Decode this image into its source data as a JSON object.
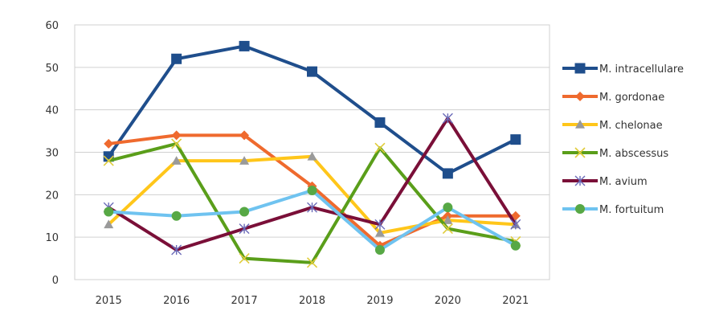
{
  "chart_data": {
    "type": "line",
    "title": "",
    "xlabel": "",
    "ylabel": "",
    "x": [
      "2015",
      "2016",
      "2017",
      "2018",
      "2019",
      "2020",
      "2021"
    ],
    "ylim": [
      0,
      60
    ],
    "yticks": [
      0,
      10,
      20,
      30,
      40,
      50,
      60
    ],
    "grid": true,
    "legend": "right",
    "series": [
      {
        "name": "M. intracellulare",
        "values": [
          29,
          52,
          55,
          49,
          37,
          25,
          33
        ],
        "color": "#1f4e8c",
        "marker": "square"
      },
      {
        "name": "M. gordonae",
        "values": [
          32,
          34,
          34,
          22,
          8,
          15,
          15
        ],
        "color": "#ef6a2e",
        "marker": "diamond"
      },
      {
        "name": "M. chelonae",
        "values": [
          13,
          28,
          28,
          29,
          11,
          14,
          13
        ],
        "color": "#ffc61a",
        "marker": "triangle"
      },
      {
        "name": "M. abscessus",
        "values": [
          28,
          32,
          5,
          4,
          31,
          12,
          9
        ],
        "color": "#5a9e1a",
        "marker": "x"
      },
      {
        "name": "M. avium",
        "values": [
          17,
          7,
          12,
          17,
          13,
          38,
          13
        ],
        "color": "#7a0f38",
        "marker": "star"
      },
      {
        "name": "M. fortuitum",
        "values": [
          16,
          15,
          16,
          21,
          7,
          17,
          8
        ],
        "color": "#6fc3f0",
        "marker": "circle"
      }
    ]
  }
}
